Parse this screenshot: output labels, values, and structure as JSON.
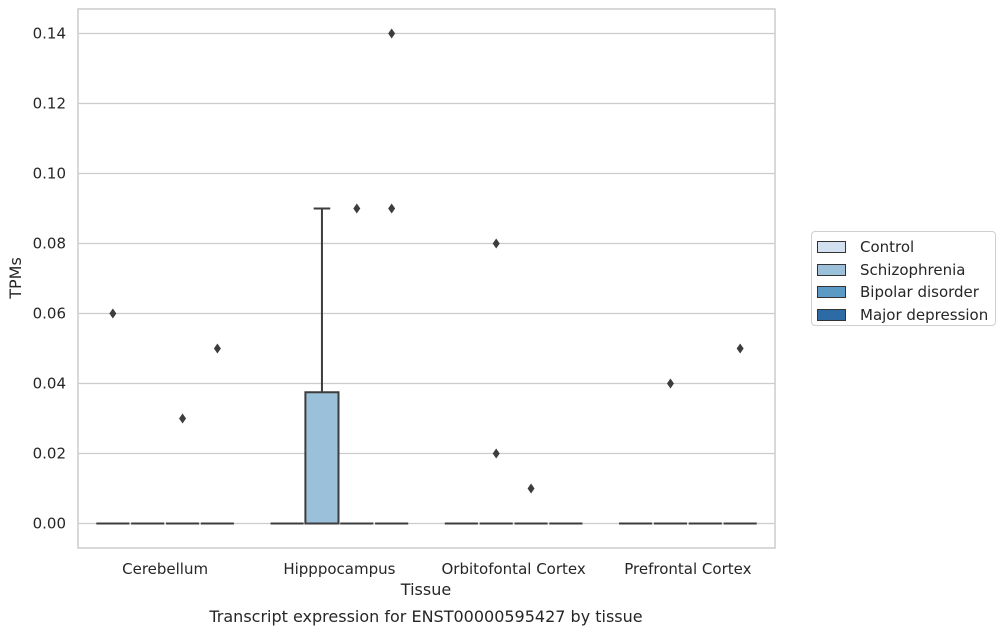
{
  "chart_data": {
    "type": "box",
    "title": "Transcript expression for ENST00000595427 by tissue",
    "xlabel": "Tissue",
    "ylabel": "TPMs",
    "categories": [
      "Cerebellum",
      "Hipppocampus",
      "Orbitofontal Cortex",
      "Prefrontal Cortex"
    ],
    "ylim": [
      -0.007,
      0.147
    ],
    "yticks": [
      0.0,
      0.02,
      0.04,
      0.06,
      0.08,
      0.1,
      0.12,
      0.14
    ],
    "ytick_labels": [
      "0.00",
      "0.02",
      "0.04",
      "0.06",
      "0.08",
      "0.10",
      "0.12",
      "0.14"
    ],
    "grid": true,
    "legend_position": "right",
    "series": [
      {
        "name": "Control",
        "color": "#d3e0ef",
        "boxes": [
          {
            "q1": 0,
            "median": 0,
            "q3": 0,
            "whisker_low": 0,
            "whisker_high": 0,
            "outliers": [
              0.06
            ]
          },
          {
            "q1": 0,
            "median": 0,
            "q3": 0,
            "whisker_low": 0,
            "whisker_high": 0,
            "outliers": []
          },
          {
            "q1": 0,
            "median": 0,
            "q3": 0,
            "whisker_low": 0,
            "whisker_high": 0,
            "outliers": []
          },
          {
            "q1": 0,
            "median": 0,
            "q3": 0,
            "whisker_low": 0,
            "whisker_high": 0,
            "outliers": []
          }
        ]
      },
      {
        "name": "Schizophrenia",
        "color": "#9ac0da",
        "boxes": [
          {
            "q1": 0,
            "median": 0,
            "q3": 0,
            "whisker_low": 0,
            "whisker_high": 0,
            "outliers": []
          },
          {
            "q1": 0,
            "median": 0,
            "q3": 0.0375,
            "whisker_low": 0,
            "whisker_high": 0.09,
            "outliers": []
          },
          {
            "q1": 0,
            "median": 0,
            "q3": 0,
            "whisker_low": 0,
            "whisker_high": 0,
            "outliers": [
              0.08,
              0.02
            ]
          },
          {
            "q1": 0,
            "median": 0,
            "q3": 0,
            "whisker_low": 0,
            "whisker_high": 0,
            "outliers": [
              0.04
            ]
          }
        ]
      },
      {
        "name": "Bipolar disorder",
        "color": "#5a9ac5",
        "boxes": [
          {
            "q1": 0,
            "median": 0,
            "q3": 0,
            "whisker_low": 0,
            "whisker_high": 0,
            "outliers": [
              0.03
            ]
          },
          {
            "q1": 0,
            "median": 0,
            "q3": 0,
            "whisker_low": 0,
            "whisker_high": 0,
            "outliers": [
              0.09
            ]
          },
          {
            "q1": 0,
            "median": 0,
            "q3": 0,
            "whisker_low": 0,
            "whisker_high": 0,
            "outliers": [
              0.01
            ]
          },
          {
            "q1": 0,
            "median": 0,
            "q3": 0,
            "whisker_low": 0,
            "whisker_high": 0,
            "outliers": []
          }
        ]
      },
      {
        "name": "Major depression",
        "color": "#2c6ba5",
        "boxes": [
          {
            "q1": 0,
            "median": 0,
            "q3": 0,
            "whisker_low": 0,
            "whisker_high": 0,
            "outliers": [
              0.05
            ]
          },
          {
            "q1": 0,
            "median": 0,
            "q3": 0,
            "whisker_low": 0,
            "whisker_high": 0,
            "outliers": [
              0.14,
              0.09
            ]
          },
          {
            "q1": 0,
            "median": 0,
            "q3": 0,
            "whisker_low": 0,
            "whisker_high": 0,
            "outliers": []
          },
          {
            "q1": 0,
            "median": 0,
            "q3": 0,
            "whisker_low": 0,
            "whisker_high": 0,
            "outliers": [
              0.05
            ]
          }
        ]
      }
    ]
  }
}
